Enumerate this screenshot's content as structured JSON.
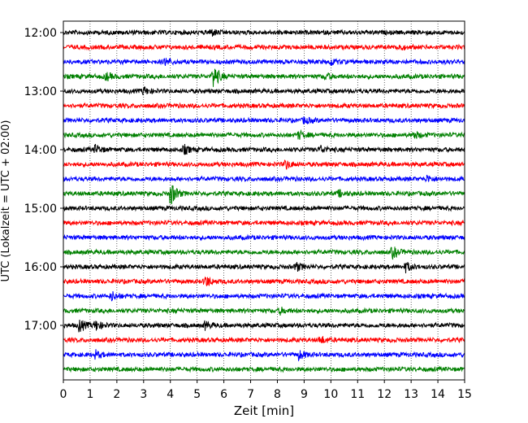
{
  "chart_data": {
    "type": "line",
    "subtype": "helicorder",
    "xlabel": "Zeit  [min]",
    "ylabel": "UTC (Lokalzeit = UTC + 02:00)",
    "xlim": [
      0,
      15
    ],
    "x_ticks": [
      0,
      1,
      2,
      3,
      4,
      5,
      6,
      7,
      8,
      9,
      10,
      11,
      12,
      13,
      14,
      15
    ],
    "x_grid": "dotted vertical lines at each minute",
    "y_ticks": [
      "12:00",
      "13:00",
      "14:00",
      "15:00",
      "16:00",
      "17:00"
    ],
    "trace_interval_minutes": 15,
    "trace_colors": [
      "#000000",
      "#ff0000",
      "#0000ff",
      "#008000"
    ],
    "traces": [
      {
        "start": "12:00",
        "color": "#000000",
        "events": [
          {
            "min": 5.5,
            "amp": 0.5
          }
        ]
      },
      {
        "start": "12:15",
        "color": "#ff0000",
        "events": [
          {
            "min": 12.5,
            "amp": 0.4
          }
        ]
      },
      {
        "start": "12:30",
        "color": "#0000ff",
        "events": [
          {
            "min": 3.8,
            "amp": 0.5
          },
          {
            "min": 10.0,
            "amp": 0.4
          }
        ]
      },
      {
        "start": "12:45",
        "color": "#008000",
        "events": [
          {
            "min": 1.6,
            "amp": 0.5
          },
          {
            "min": 5.6,
            "amp": 1.6
          },
          {
            "min": 9.8,
            "amp": 0.4
          }
        ]
      },
      {
        "start": "13:00",
        "color": "#000000",
        "events": [
          {
            "min": 3.0,
            "amp": 0.5
          }
        ]
      },
      {
        "start": "13:15",
        "color": "#ff0000",
        "events": []
      },
      {
        "start": "13:30",
        "color": "#0000ff",
        "events": [
          {
            "min": 9.0,
            "amp": 0.4
          }
        ]
      },
      {
        "start": "13:45",
        "color": "#008000",
        "events": [
          {
            "min": 8.8,
            "amp": 0.5
          },
          {
            "min": 13.1,
            "amp": 0.5
          }
        ]
      },
      {
        "start": "14:00",
        "color": "#000000",
        "events": [
          {
            "min": 1.2,
            "amp": 0.6
          },
          {
            "min": 4.5,
            "amp": 0.6
          },
          {
            "min": 9.6,
            "amp": 0.5
          }
        ]
      },
      {
        "start": "14:15",
        "color": "#ff0000",
        "events": [
          {
            "min": 8.3,
            "amp": 0.6
          }
        ]
      },
      {
        "start": "14:30",
        "color": "#0000ff",
        "events": [
          {
            "min": 13.6,
            "amp": 0.4
          }
        ]
      },
      {
        "start": "14:45",
        "color": "#008000",
        "events": [
          {
            "min": 4.0,
            "amp": 1.7
          },
          {
            "min": 10.3,
            "amp": 0.4
          }
        ]
      },
      {
        "start": "15:00",
        "color": "#000000",
        "events": []
      },
      {
        "start": "15:15",
        "color": "#ff0000",
        "events": []
      },
      {
        "start": "15:30",
        "color": "#0000ff",
        "events": []
      },
      {
        "start": "15:45",
        "color": "#008000",
        "events": [
          {
            "min": 12.3,
            "amp": 0.8
          }
        ]
      },
      {
        "start": "16:00",
        "color": "#000000",
        "events": [
          {
            "min": 8.7,
            "amp": 0.6
          },
          {
            "min": 12.8,
            "amp": 0.6
          }
        ]
      },
      {
        "start": "16:15",
        "color": "#ff0000",
        "events": [
          {
            "min": 5.3,
            "amp": 0.8
          }
        ]
      },
      {
        "start": "16:30",
        "color": "#0000ff",
        "events": [
          {
            "min": 1.8,
            "amp": 0.6
          }
        ]
      },
      {
        "start": "16:45",
        "color": "#008000",
        "events": [
          {
            "min": 8.1,
            "amp": 0.4
          }
        ]
      },
      {
        "start": "17:00",
        "color": "#000000",
        "events": [
          {
            "min": 0.6,
            "amp": 0.9
          },
          {
            "min": 1.2,
            "amp": 0.7
          },
          {
            "min": 5.3,
            "amp": 0.5
          }
        ]
      },
      {
        "start": "17:15",
        "color": "#ff0000",
        "events": [
          {
            "min": 9.6,
            "amp": 0.5
          }
        ]
      },
      {
        "start": "17:30",
        "color": "#0000ff",
        "events": [
          {
            "min": 1.2,
            "amp": 0.5
          },
          {
            "min": 8.8,
            "amp": 0.6
          }
        ]
      },
      {
        "start": "17:45",
        "color": "#008000",
        "events": []
      }
    ]
  }
}
